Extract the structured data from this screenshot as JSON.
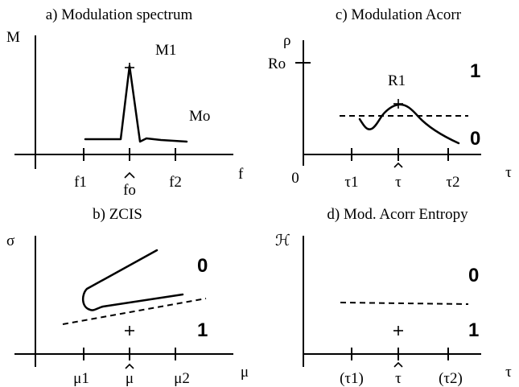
{
  "panels": {
    "a": {
      "title": "a) Modulation spectrum",
      "y_label": "M",
      "x_label": "f",
      "peak_label": "M1",
      "floor_label": "Mo",
      "ticks": [
        "f1",
        "fo",
        "f2"
      ]
    },
    "b": {
      "title": "b) ZCIS",
      "y_label": "σ",
      "x_label": "μ",
      "region_upper": "0",
      "region_lower": "1",
      "ticks": [
        "μ1",
        "μ",
        "μ2"
      ]
    },
    "c": {
      "title": "c) Modulation Acorr",
      "y_label": "ρ",
      "x_label": "τ",
      "origin": "0",
      "ro_label": "Ro",
      "peak_label": "R1",
      "region_upper": "1",
      "region_lower": "0",
      "ticks": [
        "τ1",
        "τ",
        "τ2"
      ]
    },
    "d": {
      "title": "d) Mod. Acorr Entropy",
      "y_label": "ℋ",
      "x_label": "τ",
      "region_upper": "0",
      "region_lower": "1",
      "ticks": [
        "(τ1)",
        "τ",
        "(τ2)"
      ]
    }
  }
}
